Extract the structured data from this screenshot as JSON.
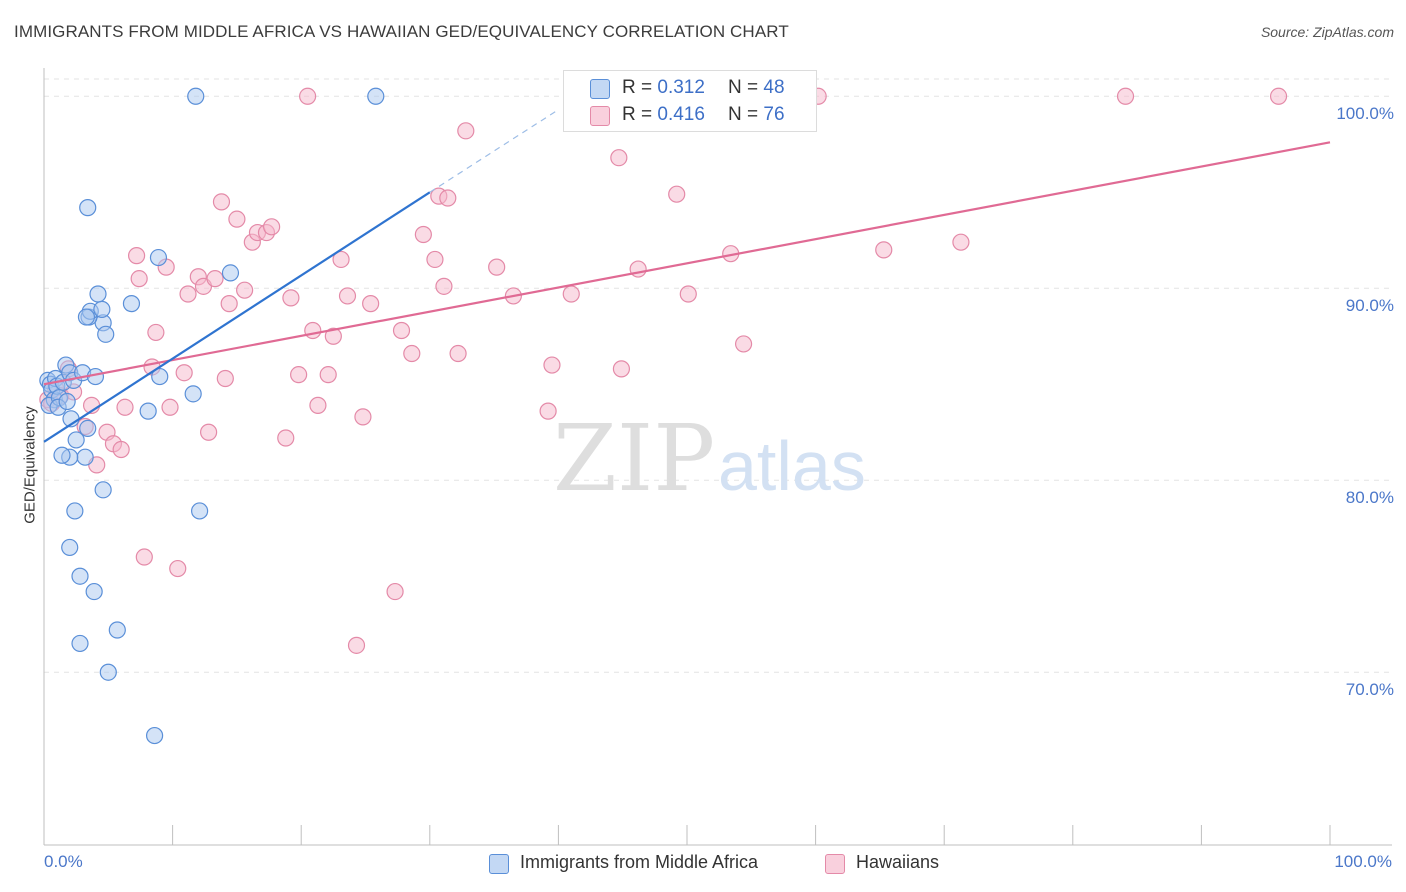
{
  "title": "IMMIGRANTS FROM MIDDLE AFRICA VS HAWAIIAN GED/EQUIVALENCY CORRELATION CHART",
  "source": "Source: ZipAtlas.com",
  "watermark": {
    "zip": "ZIP",
    "atlas": "atlas"
  },
  "legend": {
    "r_label": "R = ",
    "n_label": "N = ",
    "series": [
      {
        "r": "0.312",
        "n": "48"
      },
      {
        "r": "0.416",
        "n": "76"
      }
    ]
  },
  "colors": {
    "blue_fill": "#a9c8f0",
    "blue_stroke": "#5a8fd8",
    "blue_line": "#2f74d0",
    "pink_fill": "#f6b8cc",
    "pink_stroke": "#e48aa8",
    "pink_line": "#e06a94",
    "tick_label": "#4b77c9"
  },
  "chart_data": {
    "type": "scatter",
    "title": "IMMIGRANTS FROM MIDDLE AFRICA VS HAWAIIAN GED/EQUIVALENCY CORRELATION CHART",
    "xlabel": "",
    "ylabel": "GED/Equivalency",
    "xlim": [
      0,
      100
    ],
    "ylim": [
      61,
      100.9
    ],
    "x_tick_labels": [
      "0.0%",
      "100.0%"
    ],
    "y_ticks": [
      70,
      80,
      90,
      100
    ],
    "y_tick_labels": [
      "70.0%",
      "80.0%",
      "90.0%",
      "100.0%"
    ],
    "grid": true,
    "series": [
      {
        "name": "Immigrants from Middle Africa",
        "r": 0.312,
        "n": 48,
        "trend": {
          "x": [
            0,
            30
          ],
          "y": [
            82.0,
            95.0
          ]
        },
        "trend_extension": {
          "x": [
            30,
            40
          ],
          "y": [
            95.0,
            99.3
          ]
        },
        "points": [
          [
            0.3,
            85.2
          ],
          [
            0.5,
            85.0
          ],
          [
            0.6,
            84.7
          ],
          [
            0.8,
            84.2
          ],
          [
            0.4,
            83.9
          ],
          [
            0.9,
            85.3
          ],
          [
            1.0,
            84.9
          ],
          [
            1.2,
            84.3
          ],
          [
            1.5,
            85.1
          ],
          [
            1.1,
            83.8
          ],
          [
            1.7,
            86.0
          ],
          [
            2.0,
            85.6
          ],
          [
            2.3,
            85.2
          ],
          [
            1.8,
            84.1
          ],
          [
            2.1,
            83.2
          ],
          [
            3.0,
            85.6
          ],
          [
            2.5,
            82.1
          ],
          [
            3.2,
            81.2
          ],
          [
            2.0,
            81.2
          ],
          [
            1.4,
            81.3
          ],
          [
            3.4,
            82.7
          ],
          [
            4.0,
            85.4
          ],
          [
            2.4,
            78.4
          ],
          [
            4.6,
            79.5
          ],
          [
            2.0,
            76.5
          ],
          [
            2.8,
            75.0
          ],
          [
            3.9,
            74.2
          ],
          [
            2.8,
            71.5
          ],
          [
            5.7,
            72.2
          ],
          [
            5.0,
            70.0
          ],
          [
            8.6,
            66.7
          ],
          [
            4.6,
            88.2
          ],
          [
            3.5,
            88.5
          ],
          [
            3.6,
            88.8
          ],
          [
            4.5,
            88.9
          ],
          [
            4.8,
            87.6
          ],
          [
            3.3,
            88.5
          ],
          [
            4.2,
            89.7
          ],
          [
            6.8,
            89.2
          ],
          [
            8.9,
            91.6
          ],
          [
            14.5,
            90.8
          ],
          [
            8.1,
            83.6
          ],
          [
            9.0,
            85.4
          ],
          [
            11.6,
            84.5
          ],
          [
            12.1,
            78.4
          ],
          [
            3.4,
            94.2
          ],
          [
            11.8,
            100.0
          ],
          [
            25.8,
            100.0
          ]
        ]
      },
      {
        "name": "Hawaiians",
        "r": 0.416,
        "n": 76,
        "trend": {
          "x": [
            0,
            100
          ],
          "y": [
            85.0,
            97.6
          ]
        },
        "points": [
          [
            0.3,
            84.2
          ],
          [
            0.6,
            84.0
          ],
          [
            0.9,
            84.8
          ],
          [
            1.3,
            84.4
          ],
          [
            2.3,
            84.6
          ],
          [
            1.9,
            85.8
          ],
          [
            3.2,
            82.8
          ],
          [
            3.7,
            83.9
          ],
          [
            4.1,
            80.8
          ],
          [
            4.9,
            82.5
          ],
          [
            5.4,
            81.9
          ],
          [
            6.0,
            81.6
          ],
          [
            6.3,
            83.8
          ],
          [
            7.2,
            91.7
          ],
          [
            7.4,
            90.5
          ],
          [
            7.8,
            76.0
          ],
          [
            8.4,
            85.9
          ],
          [
            8.7,
            87.7
          ],
          [
            9.5,
            91.1
          ],
          [
            9.8,
            83.8
          ],
          [
            10.4,
            75.4
          ],
          [
            10.9,
            85.6
          ],
          [
            11.2,
            89.7
          ],
          [
            12.0,
            90.6
          ],
          [
            12.4,
            90.1
          ],
          [
            12.8,
            82.5
          ],
          [
            13.3,
            90.5
          ],
          [
            13.8,
            94.5
          ],
          [
            14.1,
            85.3
          ],
          [
            14.4,
            89.2
          ],
          [
            15.0,
            93.6
          ],
          [
            15.6,
            89.9
          ],
          [
            16.2,
            92.4
          ],
          [
            16.6,
            92.9
          ],
          [
            17.3,
            92.9
          ],
          [
            17.7,
            93.2
          ],
          [
            18.8,
            82.2
          ],
          [
            19.2,
            89.5
          ],
          [
            19.8,
            85.5
          ],
          [
            20.9,
            87.8
          ],
          [
            21.3,
            83.9
          ],
          [
            22.1,
            85.5
          ],
          [
            22.5,
            87.5
          ],
          [
            23.1,
            91.5
          ],
          [
            23.6,
            89.6
          ],
          [
            24.3,
            71.4
          ],
          [
            24.8,
            83.3
          ],
          [
            25.4,
            89.2
          ],
          [
            27.3,
            74.2
          ],
          [
            27.8,
            87.8
          ],
          [
            28.6,
            86.6
          ],
          [
            29.5,
            92.8
          ],
          [
            30.7,
            94.8
          ],
          [
            31.1,
            90.1
          ],
          [
            31.4,
            94.7
          ],
          [
            32.2,
            86.6
          ],
          [
            32.8,
            98.2
          ],
          [
            35.2,
            91.1
          ],
          [
            36.5,
            89.6
          ],
          [
            39.2,
            83.6
          ],
          [
            39.5,
            86.0
          ],
          [
            41.0,
            89.7
          ],
          [
            44.7,
            96.8
          ],
          [
            44.9,
            85.8
          ],
          [
            46.2,
            91.0
          ],
          [
            49.2,
            94.9
          ],
          [
            50.1,
            89.7
          ],
          [
            53.4,
            91.8
          ],
          [
            54.4,
            87.1
          ],
          [
            60.2,
            100.0
          ],
          [
            65.3,
            92.0
          ],
          [
            71.3,
            92.4
          ],
          [
            84.1,
            100.0
          ],
          [
            96.0,
            100.0
          ],
          [
            20.5,
            100.0
          ],
          [
            30.4,
            91.5
          ]
        ]
      }
    ]
  }
}
